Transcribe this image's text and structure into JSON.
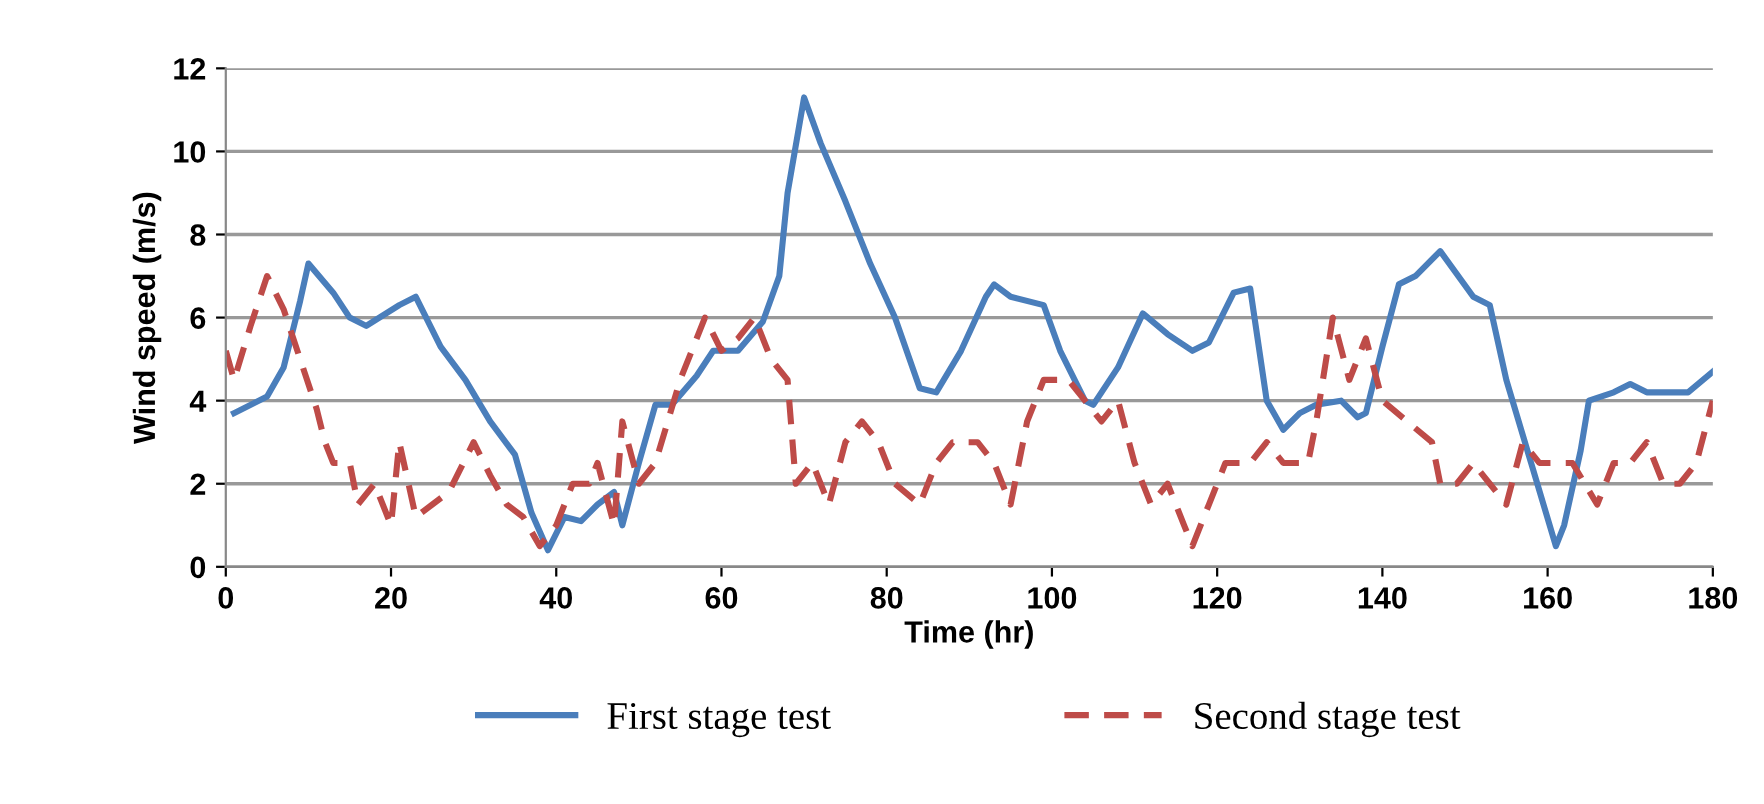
{
  "chart_data": {
    "type": "line",
    "xlabel": "Time (hr)",
    "ylabel": "Wind speed (m/s)",
    "xlim": [
      0,
      180
    ],
    "xticks": [
      0,
      20,
      40,
      60,
      80,
      100,
      120,
      140,
      160,
      180
    ],
    "ylim": [
      0,
      12
    ],
    "yticks": [
      0,
      2,
      4,
      6,
      8,
      10,
      12
    ],
    "grid": "y",
    "legend": "bottom",
    "marker": "none",
    "series": [
      {
        "name": "First stage test",
        "color": "#4a7ebb",
        "line_style": "solid",
        "x": [
          1,
          5,
          7,
          9,
          10,
          13,
          15,
          17,
          21,
          23,
          26,
          29,
          32,
          35,
          37,
          39,
          41,
          43,
          45,
          47,
          48,
          50,
          52,
          54,
          57,
          59,
          62,
          65,
          67,
          68,
          70,
          72,
          75,
          78,
          81,
          84,
          86,
          89,
          92,
          93,
          95,
          99,
          101,
          104,
          105,
          108,
          111,
          114,
          117,
          119,
          122,
          124,
          126,
          128,
          130,
          132,
          135,
          137,
          138,
          140,
          142,
          144,
          147,
          151,
          153,
          155,
          158,
          161,
          162,
          164,
          165,
          168,
          170,
          172,
          175,
          177,
          180
        ],
        "values": [
          3.7,
          4.1,
          4.8,
          6.4,
          7.3,
          6.6,
          6.0,
          5.8,
          6.3,
          6.5,
          5.3,
          4.5,
          3.5,
          2.7,
          1.3,
          0.4,
          1.2,
          1.1,
          1.5,
          1.8,
          1.0,
          2.5,
          3.9,
          3.9,
          4.6,
          5.2,
          5.2,
          5.9,
          7.0,
          9.0,
          11.3,
          10.2,
          8.8,
          7.3,
          6.0,
          4.3,
          4.2,
          5.2,
          6.5,
          6.8,
          6.5,
          6.3,
          5.2,
          4.0,
          3.9,
          4.8,
          6.1,
          5.6,
          5.2,
          5.4,
          6.6,
          6.7,
          4.0,
          3.3,
          3.7,
          3.9,
          4.0,
          3.6,
          3.7,
          5.3,
          6.8,
          7.0,
          7.6,
          6.5,
          6.3,
          4.5,
          2.5,
          0.5,
          1.0,
          2.8,
          4.0,
          4.2,
          4.4,
          4.2,
          4.2,
          4.2,
          4.7
        ]
      },
      {
        "name": "Second stage test",
        "color": "#be4b48",
        "line_style": "dashed",
        "x": [
          0,
          1,
          3,
          5,
          7,
          9,
          11,
          12,
          13,
          15,
          16,
          18,
          20,
          21,
          23,
          25,
          27,
          30,
          32,
          34,
          36,
          38,
          40,
          42,
          44,
          45,
          47,
          48,
          50,
          52,
          55,
          57,
          58,
          60,
          62,
          64,
          66,
          68,
          69,
          71,
          73,
          75,
          77,
          79,
          81,
          84,
          86,
          88,
          91,
          93,
          95,
          97,
          99,
          102,
          104,
          106,
          108,
          110,
          112,
          114,
          116,
          117,
          119,
          121,
          124,
          126,
          128,
          131,
          132,
          134,
          136,
          138,
          140,
          143,
          146,
          147,
          149,
          151,
          153,
          155,
          157,
          159,
          161,
          163,
          166,
          168,
          170,
          172,
          174,
          176,
          178,
          180
        ],
        "values": [
          5.2,
          4.5,
          5.8,
          7.0,
          6.2,
          5.0,
          3.8,
          3.0,
          2.5,
          2.5,
          1.5,
          2.0,
          1.0,
          3.0,
          1.2,
          1.5,
          1.8,
          3.0,
          2.2,
          1.5,
          1.2,
          0.5,
          1.0,
          2.0,
          2.0,
          2.5,
          1.0,
          3.5,
          2.0,
          2.5,
          4.5,
          5.5,
          6.0,
          5.2,
          5.5,
          6.0,
          5.0,
          4.5,
          2.0,
          2.5,
          1.5,
          3.0,
          3.5,
          3.0,
          2.0,
          1.5,
          2.5,
          3.0,
          3.0,
          2.5,
          1.5,
          3.5,
          4.5,
          4.5,
          4.0,
          3.5,
          4.0,
          2.5,
          1.5,
          2.0,
          1.0,
          0.5,
          1.5,
          2.5,
          2.5,
          3.0,
          2.5,
          2.5,
          3.5,
          6.0,
          4.5,
          5.5,
          4.0,
          3.5,
          3.0,
          2.0,
          2.0,
          2.5,
          2.0,
          1.5,
          3.0,
          2.5,
          2.5,
          2.5,
          1.5,
          2.5,
          2.5,
          3.0,
          2.0,
          2.0,
          2.5,
          4.0
        ]
      }
    ]
  }
}
